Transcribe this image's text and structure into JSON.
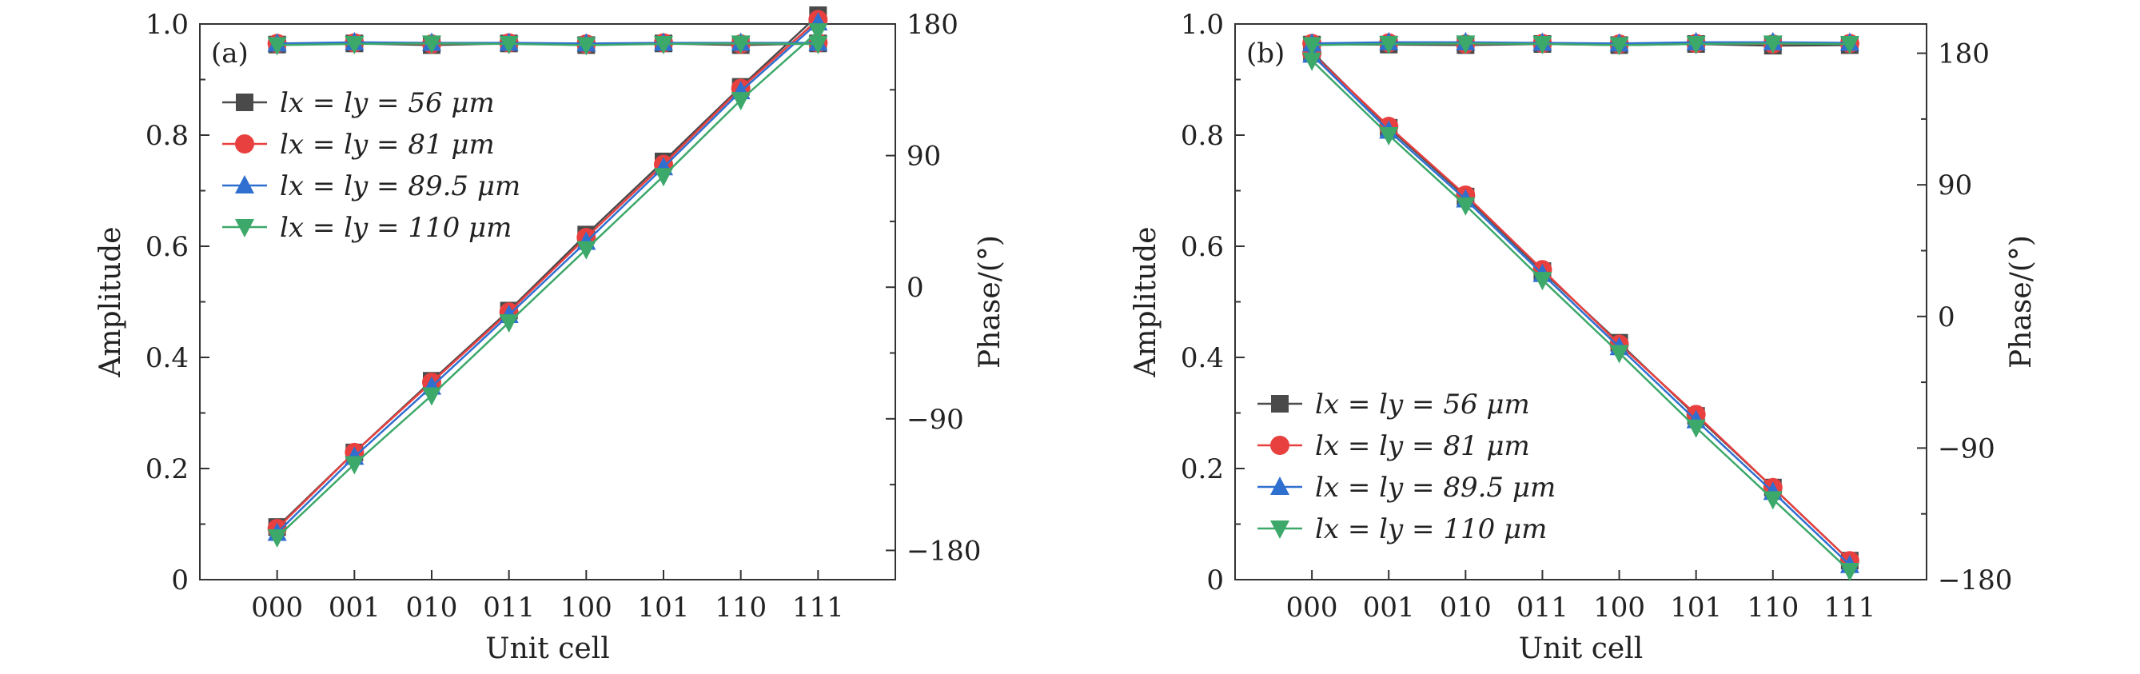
{
  "figure": {
    "x_axis_title": "Unit cell",
    "left_axis_title": "Amplitude",
    "right_axis_title": "Phase/(°)"
  },
  "chart_data": [
    {
      "type": "line",
      "panel_label": "(a)",
      "categories": [
        "000",
        "001",
        "010",
        "011",
        "100",
        "101",
        "110",
        "111"
      ],
      "xlabel": "Unit cell",
      "ylabel": "Amplitude",
      "y2label": "Phase/(°)",
      "ylim": [
        0,
        1.0
      ],
      "yticks": [
        0,
        0.2,
        0.4,
        0.6,
        0.8,
        1.0
      ],
      "ytick_labels": [
        "0",
        "0.2",
        "0.4",
        "0.6",
        "0.8",
        "1.0"
      ],
      "y2lim": [
        -200,
        180
      ],
      "y2ticks": [
        -180,
        -90,
        0,
        90,
        180
      ],
      "y2tick_labels": [
        "−180",
        "−90",
        "0",
        "90",
        "180"
      ],
      "legend_position": "upper-left",
      "series": [
        {
          "name": "l_x = l_y = 56 μm",
          "legend_label": "lx = ly = 56 μm",
          "color": "#4a4a4a",
          "marker": "square",
          "amplitude": [
            0.963,
            0.965,
            0.962,
            0.965,
            0.962,
            0.965,
            0.962,
            0.965
          ],
          "phase": [
            -164,
            -113,
            -64,
            -16,
            36,
            86,
            137,
            186
          ]
        },
        {
          "name": "l_x = l_y = 81 μm",
          "legend_label": "lx = ly = 81 μm",
          "color": "#e8403f",
          "marker": "circle",
          "amplitude": [
            0.965,
            0.966,
            0.964,
            0.966,
            0.964,
            0.966,
            0.964,
            0.966
          ],
          "phase": [
            -165,
            -113,
            -65,
            -17,
            34,
            84,
            136,
            183
          ]
        },
        {
          "name": "l_x = l_y = 89.5 μm",
          "legend_label": "lx = ly = 89.5 μm",
          "color": "#2f6fd0",
          "marker": "triangle-up",
          "amplitude": [
            0.965,
            0.967,
            0.966,
            0.966,
            0.965,
            0.966,
            0.966,
            0.966
          ],
          "phase": [
            -168,
            -116,
            -68,
            -19,
            31,
            82,
            134,
            181
          ]
        },
        {
          "name": "l_x = l_y = 110 μm",
          "legend_label": "lx = ly = 110 μm",
          "color": "#3ca86a",
          "marker": "triangle-down",
          "amplitude": [
            0.962,
            0.964,
            0.965,
            0.964,
            0.962,
            0.964,
            0.965,
            0.964
          ],
          "phase": [
            -171,
            -121,
            -74,
            -24,
            26,
            76,
            128,
            175
          ]
        }
      ]
    },
    {
      "type": "line",
      "panel_label": "(b)",
      "categories": [
        "000",
        "001",
        "010",
        "011",
        "100",
        "101",
        "110",
        "111"
      ],
      "xlabel": "Unit cell",
      "ylabel": "Amplitude",
      "y2label": "Phase/(°)",
      "ylim": [
        0,
        1.0
      ],
      "yticks": [
        0,
        0.2,
        0.4,
        0.6,
        0.8,
        1.0
      ],
      "ytick_labels": [
        "0",
        "0.2",
        "0.4",
        "0.6",
        "0.8",
        "1.0"
      ],
      "y2lim": [
        -180,
        200
      ],
      "y2ticks": [
        -180,
        -90,
        0,
        90,
        180
      ],
      "y2tick_labels": [
        "−180",
        "−90",
        "0",
        "90",
        "180"
      ],
      "legend_position": "lower-left",
      "series": [
        {
          "name": "l_x = l_y = 56 μm",
          "legend_label": "lx = ly = 56 μm",
          "color": "#4a4a4a",
          "marker": "square",
          "amplitude": [
            0.963,
            0.963,
            0.962,
            0.964,
            0.962,
            0.964,
            0.961,
            0.962
          ],
          "phase": [
            181,
            129,
            82,
            31,
            -18,
            -68,
            -117,
            -167
          ]
        },
        {
          "name": "l_x = l_y = 81 μm",
          "legend_label": "lx = ly = 81 μm",
          "color": "#e8403f",
          "marker": "circle",
          "amplitude": [
            0.965,
            0.966,
            0.964,
            0.965,
            0.964,
            0.965,
            0.964,
            0.965
          ],
          "phase": [
            180,
            130,
            83,
            32,
            -19,
            -67,
            -117,
            -167
          ]
        },
        {
          "name": "l_x = l_y = 89.5 μm",
          "legend_label": "lx = ly = 89.5 μm",
          "color": "#2f6fd0",
          "marker": "triangle-up",
          "amplitude": [
            0.965,
            0.967,
            0.967,
            0.966,
            0.965,
            0.967,
            0.967,
            0.966
          ],
          "phase": [
            179,
            127,
            80,
            29,
            -21,
            -71,
            -120,
            -170
          ]
        },
        {
          "name": "l_x = l_y = 110 μm",
          "legend_label": "lx = ly = 110 μm",
          "color": "#3ca86a",
          "marker": "triangle-down",
          "amplitude": [
            0.962,
            0.964,
            0.965,
            0.964,
            0.962,
            0.964,
            0.965,
            0.964
          ],
          "phase": [
            175,
            124,
            76,
            25,
            -25,
            -76,
            -125,
            -174
          ]
        }
      ]
    }
  ]
}
